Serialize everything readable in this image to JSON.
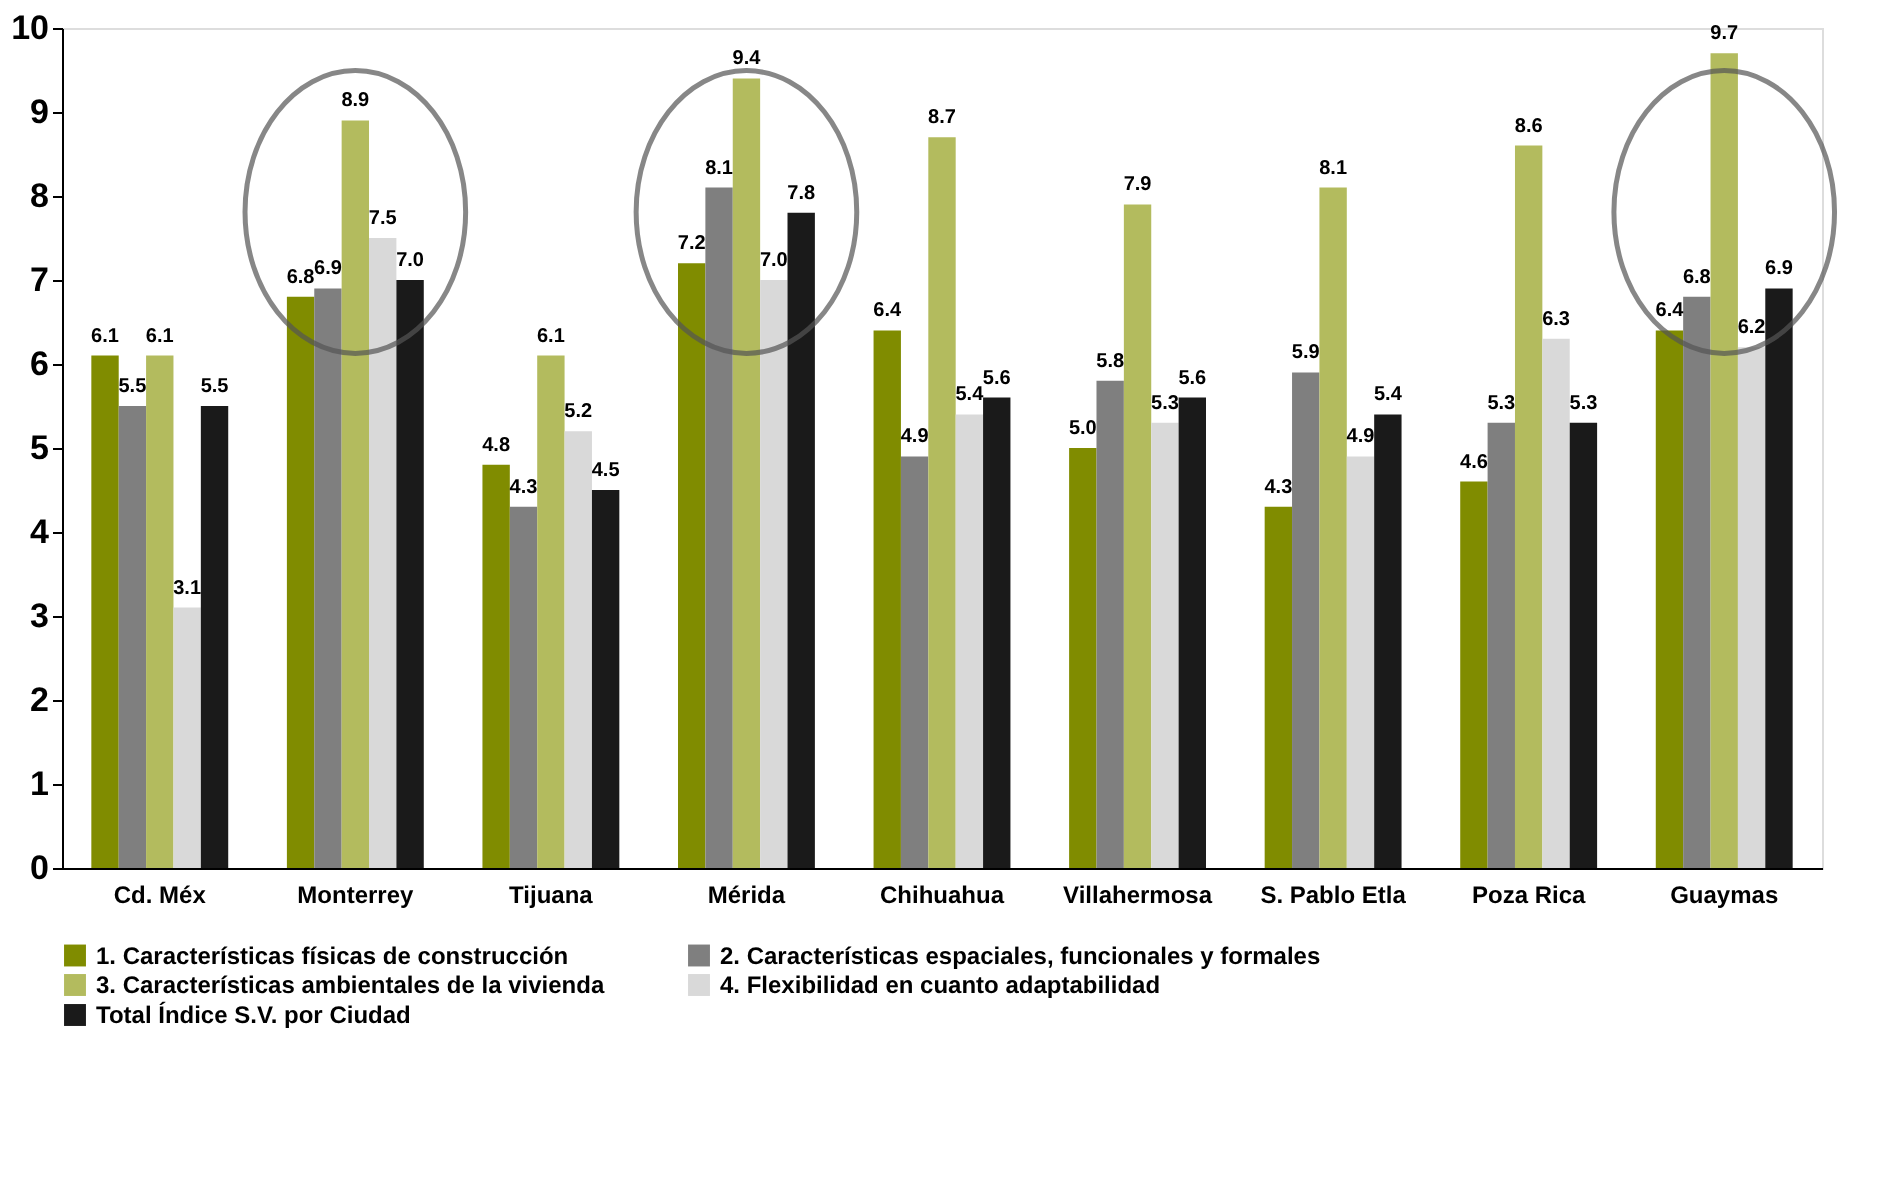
{
  "chart_data": {
    "type": "bar",
    "categories": [
      "Cd. Méx",
      "Monterrey",
      "Tijuana",
      "Mérida",
      "Chihuahua",
      "Villahermosa",
      "S. Pablo Etla",
      "Poza Rica",
      "Guaymas"
    ],
    "series": [
      {
        "name": "1. Características físicas de construcción",
        "color": "#808c00",
        "values": [
          6.1,
          6.8,
          4.8,
          7.2,
          6.4,
          5.0,
          4.3,
          4.6,
          6.4
        ]
      },
      {
        "name": "2. Características espaciales, funcionales y formales",
        "color": "#7f7f7f",
        "values": [
          5.5,
          6.9,
          4.3,
          8.1,
          4.9,
          5.8,
          5.9,
          5.3,
          6.8
        ]
      },
      {
        "name": "3. Características ambientales de la vivienda",
        "color": "#b3bb5e",
        "values": [
          6.1,
          8.9,
          6.1,
          9.4,
          8.7,
          7.9,
          8.1,
          8.6,
          9.7
        ]
      },
      {
        "name": "4. Flexibilidad en cuanto adaptabilidad",
        "color": "#d9d9d9",
        "values": [
          3.1,
          7.5,
          5.2,
          7.0,
          5.4,
          5.3,
          4.9,
          6.3,
          6.2
        ]
      },
      {
        "name": "Total Índice S.V. por Ciudad",
        "color": "#1a1a1a",
        "values": [
          5.5,
          7.0,
          4.5,
          7.8,
          5.6,
          5.6,
          5.4,
          5.3,
          6.9
        ]
      }
    ],
    "ylim": [
      0,
      10
    ],
    "yticks": [
      0,
      1,
      2,
      3,
      4,
      5,
      6,
      7,
      8,
      9,
      10
    ],
    "value_labels": [
      [
        "6.1",
        "5.5",
        "6.1",
        "3.1",
        "5.5"
      ],
      [
        "6.8",
        "6.9",
        "8.9",
        "7.5",
        "7.0"
      ],
      [
        "4.8",
        "4.3",
        "6.1",
        "5.2",
        "4.5"
      ],
      [
        "7.2",
        "8.1",
        "9.4",
        "7.0",
        "7.8"
      ],
      [
        "6.4",
        "4.9",
        "8.7",
        "5.4",
        "5.6"
      ],
      [
        "5.0",
        "5.8",
        "7.9",
        "5.3",
        "5.6"
      ],
      [
        "4.3",
        "5.9",
        "8.1",
        "4.9",
        "5.4"
      ],
      [
        "4.6",
        "5.3",
        "8.6",
        "6.3",
        "5.3"
      ],
      [
        "6.4",
        "6.8",
        "9.7",
        "6.2",
        "6.9"
      ]
    ],
    "grid": false,
    "legend": "bottom"
  }
}
